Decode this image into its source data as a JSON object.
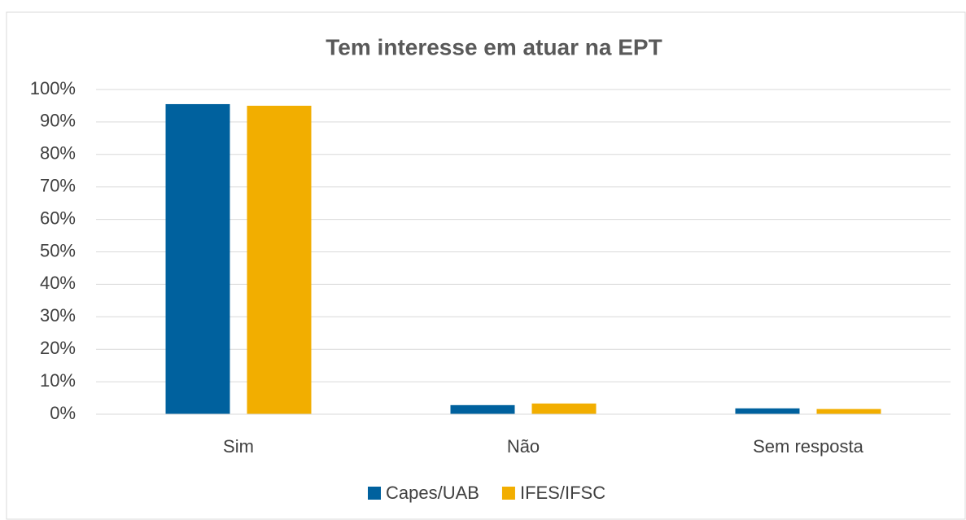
{
  "chart_data": {
    "type": "bar",
    "title": "Tem interesse em atuar na EPT",
    "categories": [
      "Sim",
      "Não",
      "Sem resposta"
    ],
    "series": [
      {
        "name": "Capes/UAB",
        "color": "#00619e",
        "values": [
          95.5,
          2.8,
          1.8
        ]
      },
      {
        "name": "IFES/IFSC",
        "color": "#f2ae00",
        "values": [
          95.0,
          3.3,
          1.6
        ]
      }
    ],
    "ylim": [
      0,
      100
    ],
    "yticks": [
      {
        "value": 0,
        "label": "0%"
      },
      {
        "value": 10,
        "label": "10%"
      },
      {
        "value": 20,
        "label": "20%"
      },
      {
        "value": 30,
        "label": "30%"
      },
      {
        "value": 40,
        "label": "40%"
      },
      {
        "value": 50,
        "label": "50%"
      },
      {
        "value": 60,
        "label": "60%"
      },
      {
        "value": 70,
        "label": "70%"
      },
      {
        "value": 80,
        "label": "80%"
      },
      {
        "value": 90,
        "label": "90%"
      },
      {
        "value": 100,
        "label": "100%"
      }
    ],
    "grid": true,
    "legend": "bottom"
  }
}
